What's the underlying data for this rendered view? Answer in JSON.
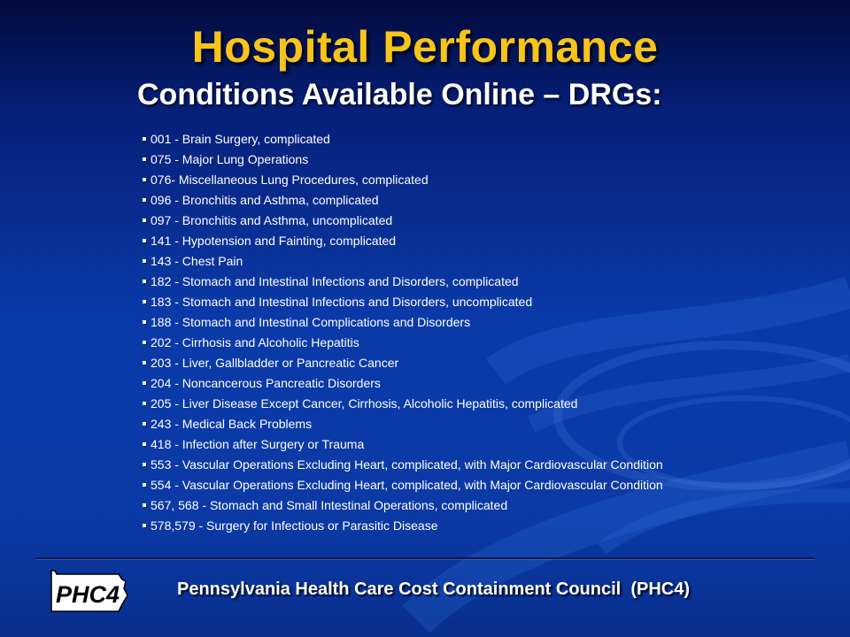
{
  "slide": {
    "title": "Hospital Performance",
    "subtitle": "Conditions Available Online – DRGs:",
    "items": [
      "001 - Brain Surgery, complicated",
      "075 - Major Lung Operations",
      "076-  Miscellaneous Lung Procedures, complicated",
      "096 - Bronchitis and Asthma, complicated",
      "097 - Bronchitis and Asthma, uncomplicated",
      "141 - Hypotension and Fainting, complicated",
      "143 - Chest Pain",
      "182 - Stomach and Intestinal Infections and Disorders, complicated",
      "183 - Stomach and Intestinal Infections and Disorders, uncomplicated",
      "188 - Stomach and Intestinal Complications and Disorders",
      "202 - Cirrhosis and Alcoholic Hepatitis",
      "203 - Liver, Gallbladder or Pancreatic Cancer",
      "204 - Noncancerous Pancreatic Disorders",
      "205 - Liver Disease Except Cancer, Cirrhosis, Alcoholic Hepatitis, complicated",
      "243 - Medical Back Problems",
      "418 - Infection after Surgery or Trauma",
      "553 - Vascular Operations Excluding Heart, complicated, with Major Cardiovascular Condition",
      "554 - Vascular Operations Excluding Heart, complicated, with Major Cardiovascular Condition",
      "567, 568 - Stomach and Small Intestinal Operations, complicated",
      "578,579 - Surgery for Infectious or Parasitic Disease"
    ]
  },
  "footer": {
    "logo_text": "PHC4",
    "org_name": "Pennsylvania Health Care Cost Containment Council  (PHC4)"
  },
  "colors": {
    "title": "#f7c41a",
    "text": "#ffffff",
    "background": "#0a3aa8"
  }
}
